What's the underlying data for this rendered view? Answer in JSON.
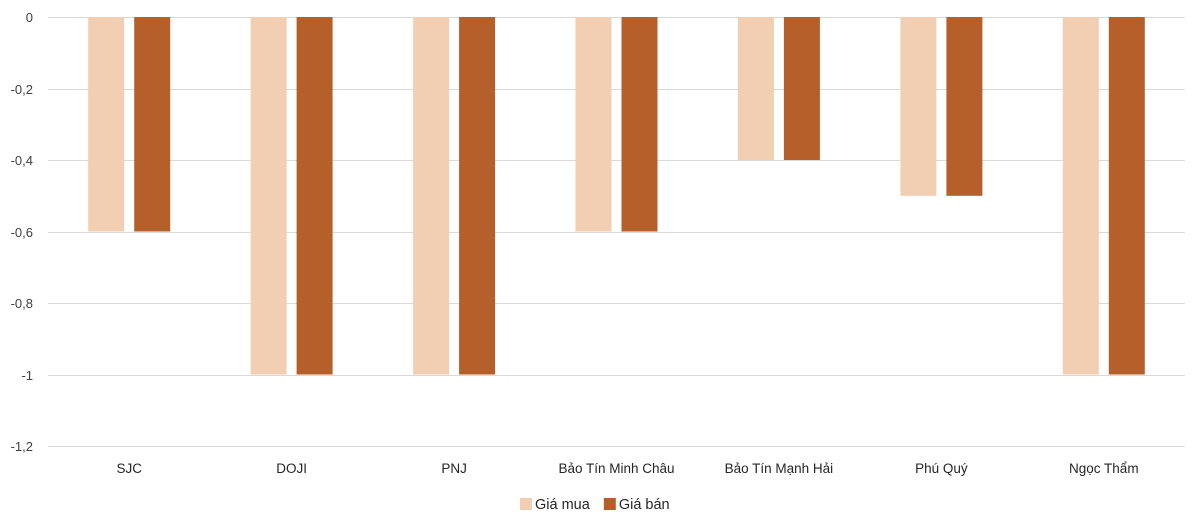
{
  "chart_data": {
    "type": "bar",
    "title": "",
    "xlabel": "",
    "ylabel": "",
    "ylim": [
      -1.2,
      0
    ],
    "yticks": [
      0,
      -0.2,
      -0.4,
      -0.6,
      -0.8,
      -1,
      -1.2
    ],
    "ytick_labels": [
      "0",
      "-0,2",
      "-0,4",
      "-0,6",
      "-0,8",
      "-1",
      "-1,2"
    ],
    "grid": true,
    "legend_position": "bottom",
    "categories": [
      "SJC",
      "DOJI",
      "PNJ",
      "Bảo Tín Minh Châu",
      "Bảo Tín Mạnh Hải",
      "Phú Quý",
      "Ngọc Thẩm"
    ],
    "series": [
      {
        "name": "Giá mua",
        "color": "#f2cfb2",
        "values": [
          -0.6,
          -1,
          -1,
          -0.6,
          -0.4,
          -0.5,
          -1
        ]
      },
      {
        "name": "Giá bán",
        "color": "#b5602b",
        "values": [
          -0.6,
          -1,
          -1,
          -0.6,
          -0.4,
          -0.5,
          -1
        ]
      }
    ]
  }
}
